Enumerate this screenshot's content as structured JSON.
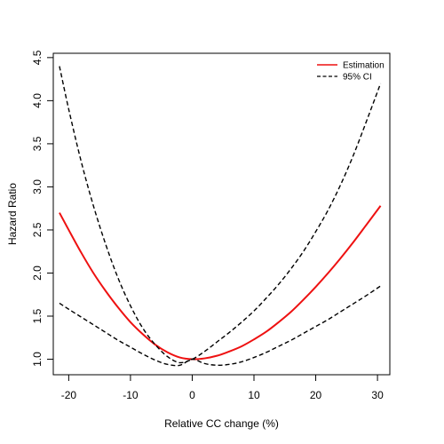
{
  "chart_data": {
    "type": "line",
    "title": "",
    "xlabel": "Relative CC change (%)",
    "ylabel": "Hazard Ratio",
    "xlim": [
      -22.5,
      32.0
    ],
    "ylim": [
      0.82,
      4.55
    ],
    "x_ticks": [
      "-20",
      "-10",
      "0",
      "10",
      "20",
      "30"
    ],
    "y_ticks": [
      "1.0",
      "1.5",
      "2.0",
      "2.5",
      "3.0",
      "3.5",
      "4.0",
      "4.5"
    ],
    "grid": false,
    "legend_position": "top-right",
    "colors": {
      "estimation": "#ee1111",
      "ci": "#000000"
    },
    "series": [
      {
        "name": "Estimation",
        "style": "solid",
        "x": [
          -21.5,
          -20,
          -18,
          -16,
          -14,
          -12,
          -10,
          -8,
          -6,
          -4,
          -2,
          0,
          2,
          4,
          6,
          8,
          10,
          12,
          14,
          16,
          18,
          20,
          22,
          24,
          26,
          28,
          30.5
        ],
        "y": [
          2.7,
          2.5,
          2.24,
          2.0,
          1.79,
          1.6,
          1.43,
          1.29,
          1.17,
          1.08,
          1.02,
          1.0,
          1.01,
          1.04,
          1.09,
          1.15,
          1.23,
          1.32,
          1.43,
          1.55,
          1.69,
          1.84,
          2.0,
          2.17,
          2.35,
          2.54,
          2.78
        ]
      },
      {
        "name": "95% CI",
        "style": "dashed",
        "x": [
          -21.5,
          -20,
          -18,
          -16,
          -14,
          -12,
          -10,
          -8,
          -6,
          -4,
          -2,
          0,
          2,
          4,
          6,
          8,
          10,
          12,
          14,
          16,
          18,
          20,
          22,
          24,
          26,
          28,
          30.5
        ],
        "y": [
          4.4,
          3.9,
          3.3,
          2.78,
          2.33,
          1.94,
          1.62,
          1.36,
          1.17,
          1.03,
          0.96,
          1.0,
          1.09,
          1.2,
          1.31,
          1.43,
          1.56,
          1.71,
          1.87,
          2.05,
          2.25,
          2.48,
          2.73,
          3.02,
          3.35,
          3.72,
          4.2
        ]
      },
      {
        "name": "",
        "style": "dashed",
        "x": [
          -21.5,
          -20,
          -18,
          -16,
          -14,
          -12,
          -10,
          -8,
          -6,
          -4,
          -2,
          0,
          2,
          4,
          6,
          8,
          10,
          12,
          14,
          16,
          18,
          20,
          22,
          24,
          26,
          28,
          30.5
        ],
        "y": [
          1.65,
          1.58,
          1.49,
          1.4,
          1.31,
          1.22,
          1.14,
          1.06,
          0.99,
          0.94,
          0.93,
          1.0,
          0.95,
          0.93,
          0.94,
          0.97,
          1.02,
          1.08,
          1.15,
          1.22,
          1.3,
          1.38,
          1.46,
          1.55,
          1.64,
          1.73,
          1.85
        ]
      }
    ],
    "legend": [
      {
        "label": "Estimation",
        "style": "solid",
        "color": "#ee1111"
      },
      {
        "label": "95% CI",
        "style": "dashed",
        "color": "#000000"
      }
    ]
  }
}
